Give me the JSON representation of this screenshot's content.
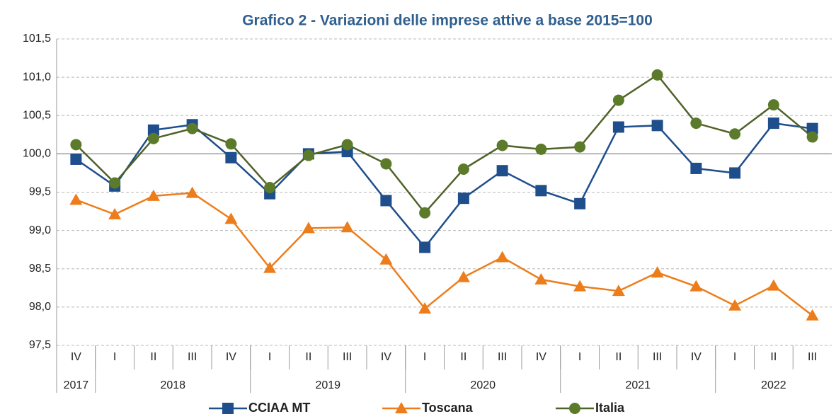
{
  "chart_data": {
    "type": "line",
    "title": "Grafico 2 - Variazioni delle imprese attive a base 2015=100",
    "categories": [
      "IV",
      "I",
      "II",
      "III",
      "IV",
      "I",
      "II",
      "III",
      "IV",
      "I",
      "II",
      "III",
      "IV",
      "I",
      "II",
      "III",
      "IV",
      "I",
      "II",
      "III"
    ],
    "years": [
      "2017",
      "2018",
      "2019",
      "2020",
      "2021",
      "2022"
    ],
    "series": [
      {
        "name": "CCIAA MT",
        "color": "#1f4e8c",
        "marker": "square",
        "values": [
          99.93,
          99.58,
          100.31,
          100.38,
          99.95,
          99.48,
          100.0,
          100.03,
          99.39,
          98.78,
          99.42,
          99.78,
          99.52,
          99.35,
          100.35,
          100.37,
          99.81,
          99.75,
          100.4,
          100.33
        ]
      },
      {
        "name": "Toscana",
        "color": "#ed7d1a",
        "marker": "triangle",
        "values": [
          99.4,
          99.21,
          99.45,
          99.49,
          99.15,
          98.51,
          99.03,
          99.04,
          98.62,
          97.98,
          98.39,
          98.65,
          98.36,
          98.27,
          98.21,
          98.45,
          98.27,
          98.02,
          98.28,
          97.89
        ]
      },
      {
        "name": "Italia",
        "color": "#4f6228",
        "marker_color": "#5b7b2b",
        "marker": "circle",
        "values": [
          100.12,
          99.62,
          100.2,
          100.33,
          100.13,
          99.56,
          99.98,
          100.12,
          99.87,
          99.23,
          99.8,
          100.11,
          100.06,
          100.09,
          100.7,
          101.03,
          100.4,
          100.26,
          100.64,
          100.22
        ]
      }
    ],
    "ylim": [
      97.5,
      101.5
    ],
    "yticks": [
      {
        "value": 97.5,
        "label": "97,5"
      },
      {
        "value": 98.0,
        "label": "98,0"
      },
      {
        "value": 98.5,
        "label": "98,5"
      },
      {
        "value": 99.0,
        "label": "99,0"
      },
      {
        "value": 99.5,
        "label": "99,5"
      },
      {
        "value": 100.0,
        "label": "100,0"
      },
      {
        "value": 100.5,
        "label": "100,5"
      },
      {
        "value": 101.0,
        "label": "101,0"
      },
      {
        "value": 101.5,
        "label": "101,5"
      }
    ],
    "x_axis_at": 100,
    "grid": true,
    "legend": "bottom"
  }
}
